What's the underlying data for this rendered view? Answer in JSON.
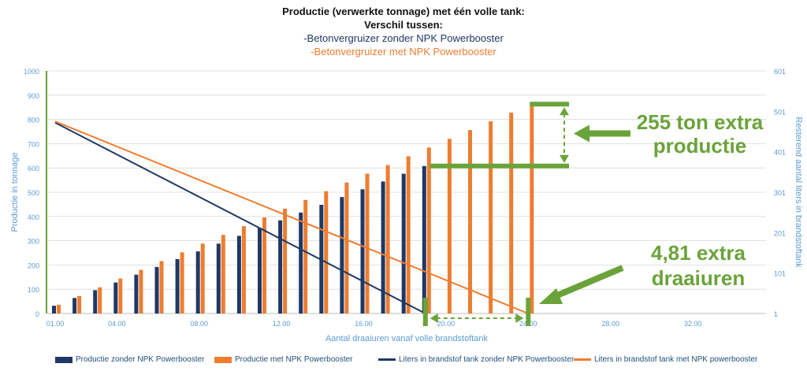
{
  "title_lines": {
    "line1": "Productie (verwerkte tonnage) met één volle tank:",
    "line2": "Verschil tussen:",
    "line3": "-Betonvergruizer zonder NPK Powerbooster",
    "line4": "-Betonvergruizer met NPK Powerbooster"
  },
  "colors": {
    "navy": "#1f3864",
    "orange": "#ed7d31",
    "green": "#6aa33a",
    "axis_text": "#5b9bd5",
    "grid": "#d9d9d9"
  },
  "annotations": {
    "extra_production": [
      "255 ton extra",
      "productie"
    ],
    "extra_hours": [
      "4,81 extra",
      "draaiuren"
    ]
  },
  "chart_data": {
    "type": "bar",
    "xlabel": "Aantal draaiuren vanaf volle brandstoftank",
    "ylabel": "Productie in tonnage",
    "y2label": "Resterend aantal liters in brandstoftank",
    "x_ticks": [
      "01.00",
      "04.00",
      "08.00",
      "12.00",
      "16.00",
      "20.00",
      "24.00",
      "28.00",
      "32.00"
    ],
    "xlim": [
      1,
      36
    ],
    "ylim": [
      0,
      1000
    ],
    "y_ticks": [
      0,
      100,
      200,
      300,
      400,
      500,
      600,
      700,
      800,
      900,
      1000
    ],
    "y2lim": [
      1,
      601
    ],
    "y2_ticks": [
      1,
      101,
      201,
      301,
      401,
      501,
      601
    ],
    "grid": true,
    "legend_position": "bottom",
    "bar_series": [
      {
        "name": "Productie zonder NPK Powerbooster",
        "color": "#1f3864",
        "x": [
          1,
          2,
          3,
          4,
          5,
          6,
          7,
          8,
          9,
          10,
          11,
          12,
          13,
          14,
          15,
          16,
          17,
          18,
          19
        ],
        "values": [
          32,
          64,
          96,
          128,
          160,
          192,
          224,
          256,
          288,
          320,
          352,
          384,
          416,
          448,
          480,
          512,
          544,
          576,
          608
        ]
      },
      {
        "name": "Productie met NPK Powerbooster",
        "color": "#ed7d31",
        "x": [
          1,
          2,
          3,
          4,
          5,
          6,
          7,
          8,
          9,
          10,
          11,
          12,
          13,
          14,
          15,
          16,
          17,
          18,
          19,
          20,
          21,
          22,
          23,
          24
        ],
        "values": [
          36,
          72,
          108,
          144,
          180,
          216,
          252,
          288,
          324,
          360,
          396,
          432,
          468,
          504,
          540,
          576,
          612,
          648,
          684,
          720,
          756,
          792,
          828,
          863
        ]
      }
    ],
    "line_series": [
      {
        "name": "Liters in brandstof tank zonder NPK Powerbooster",
        "color": "#1f3864",
        "x": [
          1,
          19
        ],
        "values": [
          473,
          1
        ]
      },
      {
        "name": "Liters in brandstof tank met NPK powerbooster",
        "color": "#ed7d31",
        "x": [
          1,
          24
        ],
        "values": [
          476,
          1
        ]
      }
    ]
  }
}
